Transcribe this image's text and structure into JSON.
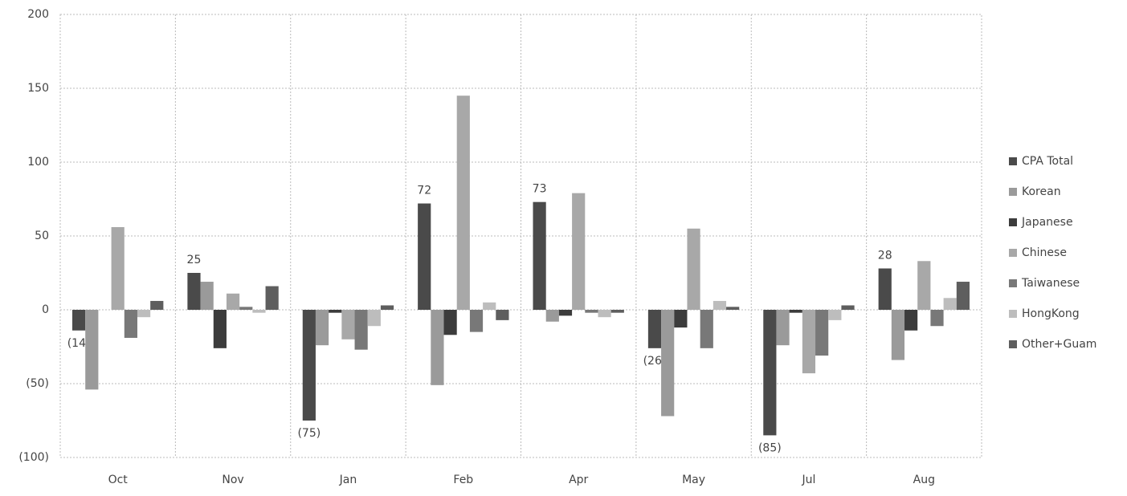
{
  "chart_data": {
    "type": "bar",
    "categories": [
      "Oct",
      "Nov",
      "Jan",
      "Feb",
      "Apr",
      "May",
      "Jul",
      "Aug"
    ],
    "series": [
      {
        "name": "CPA Total",
        "color": "#4a4a4a",
        "values": [
          -14,
          25,
          -75,
          72,
          73,
          -26,
          -85,
          28
        ],
        "value_labels": [
          "(14)",
          "25",
          "(75)",
          "72",
          "73",
          "(26)",
          "(85)",
          "28"
        ]
      },
      {
        "name": "Korean",
        "color": "#9a9a9a",
        "values": [
          -54,
          19,
          -24,
          -51,
          -8,
          -72,
          -24,
          -34
        ]
      },
      {
        "name": "Japanese",
        "color": "#3c3c3c",
        "values": [
          0,
          -26,
          -2,
          -17,
          -4,
          -12,
          -2,
          -14
        ]
      },
      {
        "name": "Chinese",
        "color": "#a8a8a8",
        "values": [
          56,
          11,
          -20,
          145,
          79,
          55,
          -43,
          33
        ]
      },
      {
        "name": "Taiwanese",
        "color": "#787878",
        "values": [
          -19,
          2,
          -27,
          -15,
          -2,
          -26,
          -31,
          -11
        ]
      },
      {
        "name": "HongKong",
        "color": "#bdbdbd",
        "values": [
          -5,
          -2,
          -11,
          5,
          -5,
          6,
          -7,
          8
        ]
      },
      {
        "name": "Other+Guam",
        "color": "#5e5e5e",
        "values": [
          6,
          16,
          3,
          -7,
          -2,
          2,
          3,
          19
        ]
      }
    ],
    "ylim": [
      -100,
      200
    ],
    "yticks": [
      {
        "value": -100,
        "label": "(100)"
      },
      {
        "value": -50,
        "label": "(50)"
      },
      0,
      50,
      100,
      150,
      200
    ],
    "grid": true,
    "legend": "right"
  }
}
